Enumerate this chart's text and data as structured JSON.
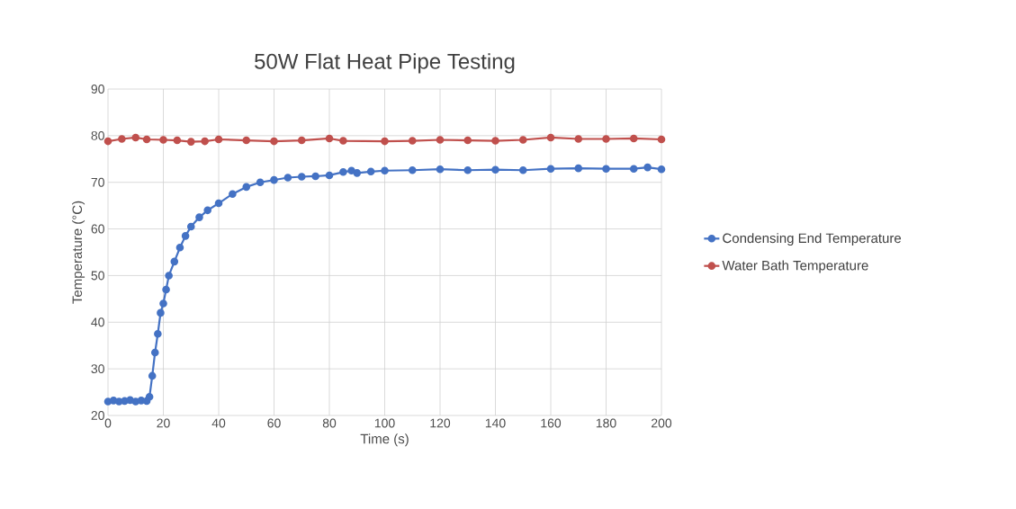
{
  "chart_data": {
    "type": "line",
    "title": "50W Flat Heat Pipe Testing",
    "xlabel": "Time (s)",
    "ylabel": "Temperature (°C)",
    "xlim": [
      0,
      200
    ],
    "ylim": [
      20,
      90
    ],
    "xticks": [
      0,
      20,
      40,
      60,
      80,
      100,
      120,
      140,
      160,
      180,
      200
    ],
    "yticks": [
      20,
      30,
      40,
      50,
      60,
      70,
      80,
      90
    ],
    "grid": true,
    "legend": "right",
    "marker": "circle",
    "line_style": "solid",
    "series": [
      {
        "name": "Condensing End Temperature",
        "color": "#4472c4",
        "x": [
          0,
          2,
          4,
          6,
          8,
          10,
          12,
          14,
          15,
          16,
          17,
          18,
          19,
          20,
          21,
          22,
          24,
          26,
          28,
          30,
          33,
          36,
          40,
          45,
          50,
          55,
          60,
          65,
          70,
          75,
          80,
          85,
          88,
          90,
          95,
          100,
          110,
          120,
          130,
          140,
          150,
          160,
          170,
          180,
          190,
          195,
          200
        ],
        "values": [
          23,
          23.2,
          23,
          23.1,
          23.3,
          23,
          23.2,
          23.1,
          24,
          28.5,
          33.5,
          37.5,
          42,
          44,
          47,
          50,
          53,
          56,
          58.5,
          60.5,
          62.5,
          64,
          65.5,
          67.5,
          69,
          70,
          70.5,
          71,
          71.2,
          71.3,
          71.5,
          72.2,
          72.5,
          72,
          72.3,
          72.5,
          72.6,
          72.8,
          72.6,
          72.7,
          72.6,
          72.9,
          73,
          72.9,
          72.9,
          73.2,
          72.8
        ]
      },
      {
        "name": "Water Bath Temperature",
        "color": "#c0504d",
        "x": [
          0,
          5,
          10,
          14,
          20,
          25,
          30,
          35,
          40,
          50,
          60,
          70,
          80,
          85,
          100,
          110,
          120,
          130,
          140,
          150,
          160,
          170,
          180,
          190,
          200
        ],
        "values": [
          78.8,
          79.3,
          79.6,
          79.2,
          79.1,
          79,
          78.7,
          78.8,
          79.2,
          79,
          78.8,
          79,
          79.4,
          78.9,
          78.8,
          78.9,
          79.1,
          79,
          78.9,
          79.1,
          79.6,
          79.3,
          79.3,
          79.4,
          79.2
        ]
      }
    ]
  }
}
